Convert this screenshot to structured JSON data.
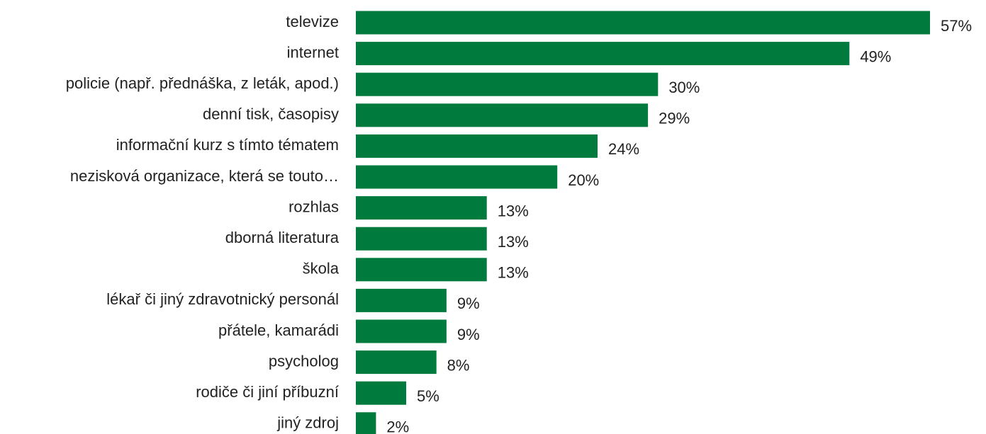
{
  "chart_data": {
    "type": "bar",
    "orientation": "horizontal",
    "categories": [
      "televize",
      "internet",
      "policie (např. přednáška, z leták, apod.)",
      "denní tisk, časopisy",
      "informační kurz s tímto tématem",
      "nezisková organizace, která se touto…",
      "rozhlas",
      "dborná literatura",
      "škola",
      "lékař či jiný zdravotnický personál",
      "přátele, kamarádi",
      "psycholog",
      "rodiče či jiní příbuzní",
      "jiný zdroj"
    ],
    "values": [
      57,
      49,
      30,
      29,
      24,
      20,
      13,
      13,
      13,
      9,
      9,
      8,
      5,
      2
    ],
    "value_labels": [
      "57%",
      "49%",
      "30%",
      "29%",
      "24%",
      "20%",
      "13%",
      "13%",
      "13%",
      "9%",
      "9%",
      "8%",
      "5%",
      "2%"
    ],
    "color": "#007a3d"
  }
}
